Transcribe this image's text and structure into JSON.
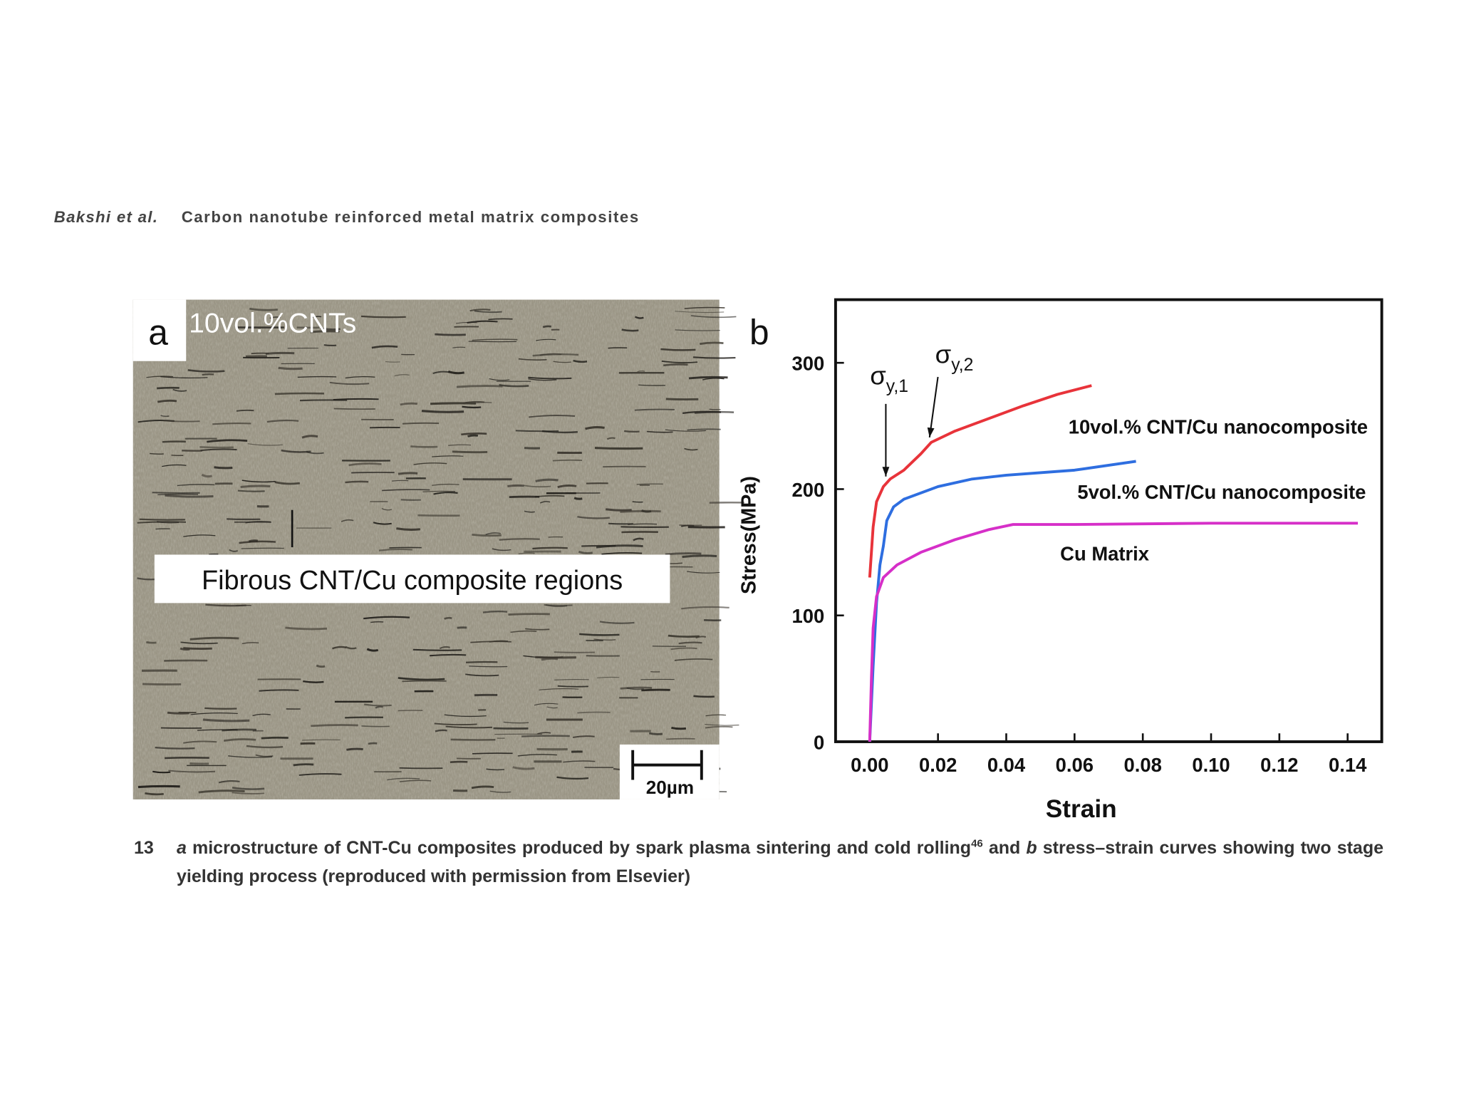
{
  "header": {
    "authors": "Bakshi et al.",
    "title": "Carbon nanotube reinforced metal matrix composites"
  },
  "panel_a": {
    "label": "a",
    "overlay_label": "10vol.%CNTs",
    "annotation": "Fibrous CNT/Cu composite regions",
    "scale_bar": "20µm"
  },
  "chart_data": {
    "type": "line",
    "label": "b",
    "xlabel": "Strain",
    "ylabel": "Stress(MPa)",
    "xlim": [
      -0.01,
      0.15
    ],
    "ylim": [
      0,
      350
    ],
    "xticks": [
      {
        "value": 0,
        "label": "0.00"
      },
      {
        "value": 0.02,
        "label": "0.02"
      },
      {
        "value": 0.04,
        "label": "0.04"
      },
      {
        "value": 0.06,
        "label": "0.06"
      },
      {
        "value": 0.08,
        "label": "0.08"
      },
      {
        "value": 0.1,
        "label": "0.10"
      },
      {
        "value": 0.12,
        "label": "0.12"
      },
      {
        "value": 0.14,
        "label": "0.14"
      }
    ],
    "yticks": [
      0,
      100,
      200,
      300
    ],
    "series": [
      {
        "name": "10vol.% CNT/Cu nanocomposite",
        "color": "#e8333a",
        "x": [
          0,
          0.001,
          0.002,
          0.004,
          0.006,
          0.01,
          0.015,
          0.018,
          0.025,
          0.035,
          0.045,
          0.055,
          0.065
        ],
        "values": [
          130,
          170,
          190,
          202,
          208,
          215,
          228,
          237,
          246,
          256,
          266,
          275,
          282
        ]
      },
      {
        "name": "5vol.% CNT/Cu nanocomposite",
        "color": "#2e6ee0",
        "x": [
          0,
          0.001,
          0.002,
          0.003,
          0.004,
          0.005,
          0.007,
          0.01,
          0.02,
          0.03,
          0.04,
          0.06,
          0.078
        ],
        "values": [
          0,
          60,
          110,
          140,
          155,
          175,
          186,
          192,
          202,
          208,
          211,
          215,
          222
        ]
      },
      {
        "name": "Cu Matrix",
        "color": "#d62fc8",
        "x": [
          0,
          0.0005,
          0.001,
          0.002,
          0.004,
          0.008,
          0.015,
          0.025,
          0.035,
          0.042,
          0.06,
          0.1,
          0.143
        ],
        "values": [
          0,
          50,
          90,
          115,
          130,
          140,
          150,
          160,
          168,
          172,
          172,
          173,
          173
        ]
      }
    ],
    "annotations": [
      {
        "symbol": "σ",
        "subscript": "y,1"
      },
      {
        "symbol": "σ",
        "subscript": "y,2"
      }
    ]
  },
  "caption": {
    "number": "13",
    "parts": [
      "a",
      "microstructure of CNT-Cu composites produced by spark plasma sintering and cold rolling",
      "46",
      "and",
      "b",
      "stress–strain curves showing two stage yielding process (reproduced with permission from Elsevier)"
    ]
  }
}
